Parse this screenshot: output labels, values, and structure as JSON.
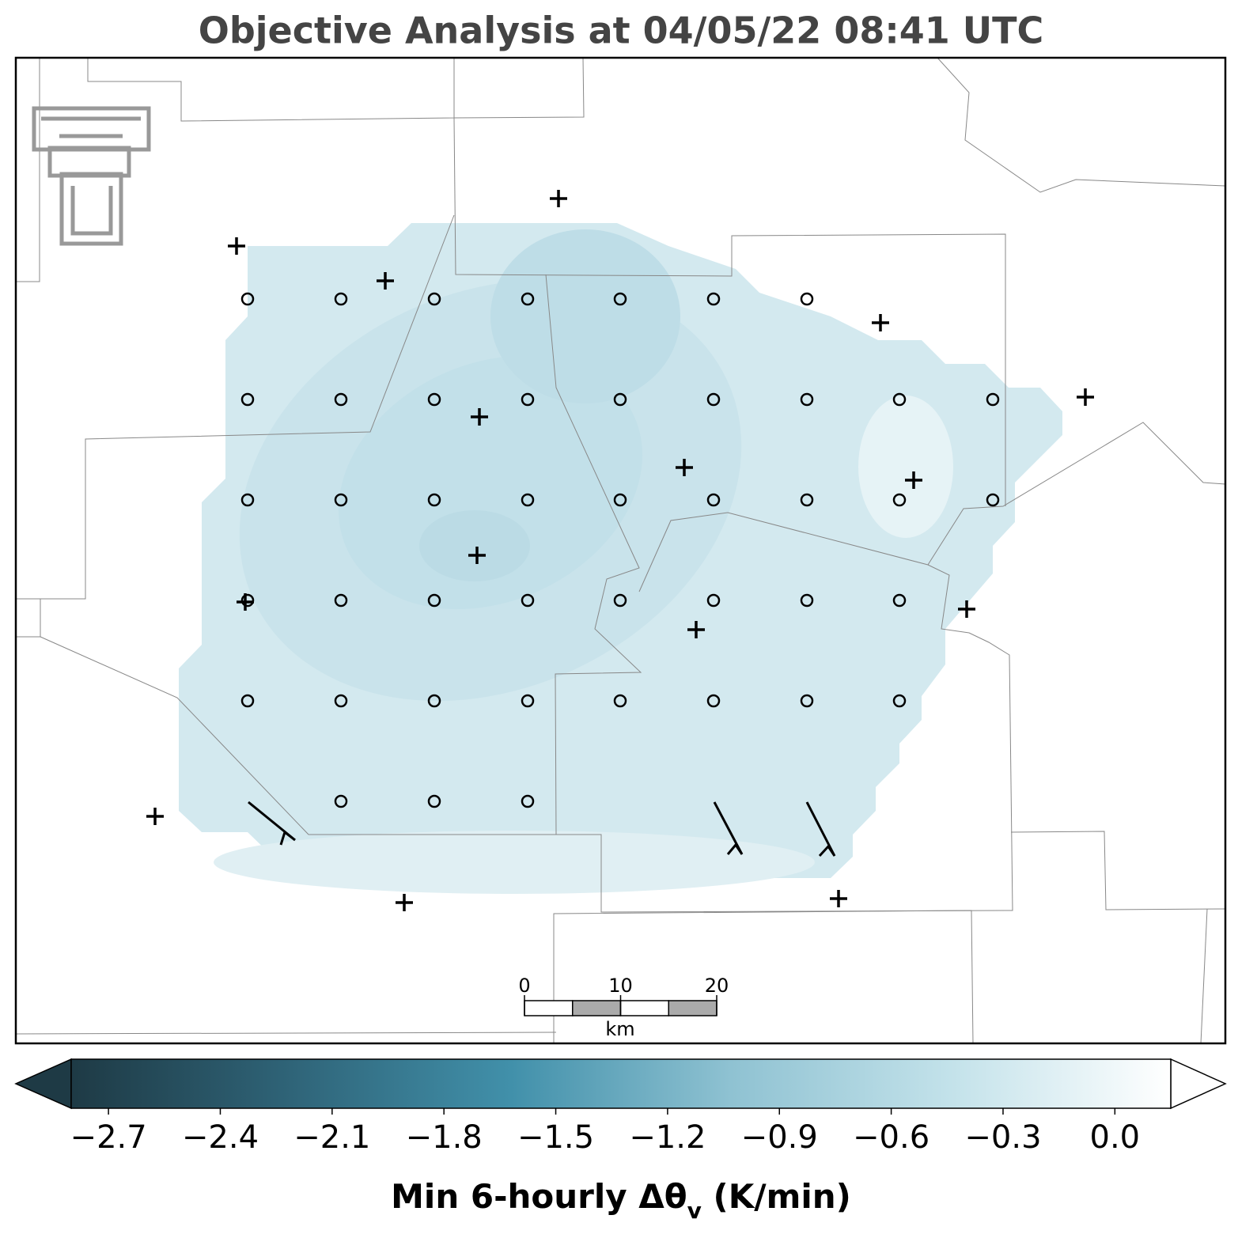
{
  "title": "Objective Analysis at 04/05/22 08:41 UTC",
  "scale_bar": {
    "ticks": [
      0,
      10,
      20
    ],
    "unit": "km"
  },
  "colorbar": {
    "label_main": "Min 6-hourly Δθ",
    "label_sub": "v",
    "label_end": " (K/min)",
    "lim": [
      -2.8,
      0.15
    ],
    "ticks": [
      {
        "value": -2.7,
        "label": "−2.7"
      },
      {
        "value": -2.4,
        "label": "−2.4"
      },
      {
        "value": -2.1,
        "label": "−2.1"
      },
      {
        "value": -1.8,
        "label": "−1.8"
      },
      {
        "value": -1.5,
        "label": "−1.5"
      },
      {
        "value": -1.2,
        "label": "−1.2"
      },
      {
        "value": -0.9,
        "label": "−0.9"
      },
      {
        "value": -0.6,
        "label": "−0.6"
      },
      {
        "value": -0.3,
        "label": "−0.3"
      },
      {
        "value": 0.0,
        "label": "0.0"
      }
    ],
    "colors": [
      "#1e3a45",
      "#2f6478",
      "#4190aa",
      "#8fc2d2",
      "#c3e2ea",
      "#ffffff"
    ]
  }
}
